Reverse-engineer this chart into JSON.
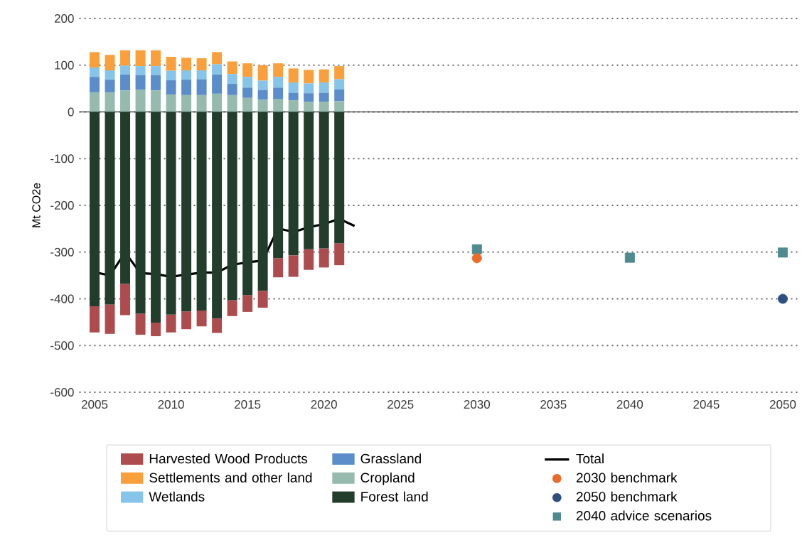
{
  "chart_data": {
    "type": "bar",
    "stacked": true,
    "ylabel": "Mt CO2e",
    "x": [
      2005,
      2006,
      2007,
      2008,
      2009,
      2010,
      2011,
      2012,
      2013,
      2014,
      2015,
      2016,
      2017,
      2018,
      2019,
      2020,
      2021
    ],
    "xlim": [
      2004,
      2051
    ],
    "xticks": [
      2005,
      2010,
      2015,
      2020,
      2025,
      2030,
      2035,
      2040,
      2045,
      2050
    ],
    "ylim": [
      -600,
      200
    ],
    "yticks": [
      -600,
      -500,
      -400,
      -300,
      -200,
      -100,
      0,
      100,
      200
    ],
    "grid": "y",
    "legend": "bottom",
    "ref_lines": [
      {
        "axis": "y",
        "value": 0,
        "color": "#333333"
      }
    ],
    "series": [
      {
        "name": "Forest land",
        "color": "#233d2c",
        "values": [
          -416,
          -412,
          -368,
          -432,
          -451,
          -434,
          -427,
          -425,
          -442,
          -403,
          -392,
          -383,
          -313,
          -307,
          -294,
          -292,
          -281
        ]
      },
      {
        "name": "Cropland",
        "color": "#96bbae",
        "values": [
          42,
          42,
          46,
          48,
          46,
          37,
          36,
          36,
          39,
          36,
          30,
          26,
          27,
          25,
          22,
          22,
          23
        ]
      },
      {
        "name": "Grassland",
        "color": "#5b8dcb",
        "values": [
          33,
          27,
          34,
          31,
          33,
          31,
          33,
          34,
          41,
          24,
          22,
          21,
          25,
          16,
          18,
          19,
          25
        ]
      },
      {
        "name": "Wetlands",
        "color": "#86c4ea",
        "values": [
          20,
          20,
          19,
          19,
          19,
          20,
          20,
          19,
          22,
          21,
          23,
          20,
          23,
          22,
          21,
          22,
          22
        ]
      },
      {
        "name": "Settlements and other land",
        "color": "#f9a03c",
        "values": [
          33,
          33,
          33,
          34,
          34,
          30,
          27,
          26,
          26,
          27,
          29,
          33,
          29,
          30,
          29,
          28,
          28
        ]
      },
      {
        "name": "Harvested Wood Products",
        "color": "#ad4c4f",
        "values": [
          -56,
          -63,
          -67,
          -45,
          -29,
          -38,
          -38,
          -34,
          -31,
          -34,
          -36,
          -36,
          -41,
          -46,
          -44,
          -41,
          -47
        ]
      },
      {
        "name": "Total",
        "type": "line",
        "color": "#000000",
        "marker": "none",
        "x": [
          2005,
          2006,
          2007,
          2008,
          2009,
          2010,
          2011,
          2012,
          2013,
          2014,
          2015,
          2016,
          2017,
          2018,
          2019,
          2020,
          2021,
          2022
        ],
        "values": [
          -343,
          -350,
          -301,
          -345,
          -347,
          -353,
          -348,
          -344,
          -344,
          -327,
          -322,
          -318,
          -249,
          -257,
          -247,
          -240,
          -229,
          -244
        ]
      },
      {
        "name": "2030 benchmark",
        "type": "scatter",
        "color": "#e86c2c",
        "marker": "circle",
        "x": [
          2030
        ],
        "values": [
          -313
        ]
      },
      {
        "name": "2050 benchmark",
        "type": "scatter",
        "color": "#2f4f7f",
        "marker": "circle",
        "x": [
          2050
        ],
        "values": [
          -400
        ]
      },
      {
        "name": "2040 advice scenarios",
        "type": "scatter",
        "color": "#4f8a8f",
        "marker": "square",
        "x": [
          2030,
          2040,
          2050
        ],
        "values": [
          -294,
          -312,
          -301
        ]
      }
    ]
  }
}
